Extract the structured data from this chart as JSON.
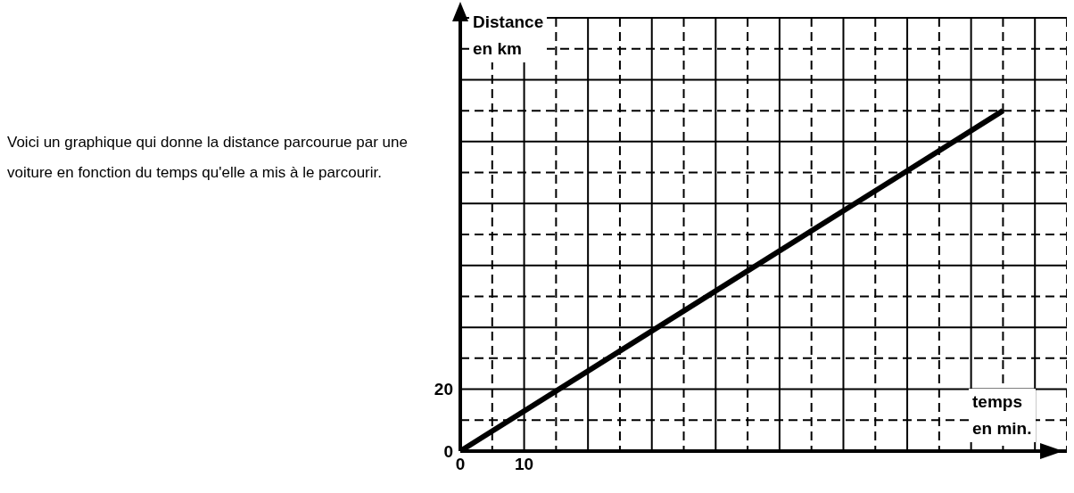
{
  "chart_data": {
    "type": "line",
    "xlabel": "temps en min.",
    "ylabel": "Distance en km",
    "annotations": [
      "Voici un graphique qui donne la distance parcourue par une voiture en fonction du temps qu'elle a mis à le parcourir."
    ],
    "xlim": [
      0,
      95
    ],
    "ylim": [
      0,
      140
    ],
    "xticks": [
      0,
      {
        "value": 5,
        "label": null
      },
      10,
      {
        "value": 15,
        "label": null
      },
      {
        "value": 20,
        "label": null
      },
      {
        "value": 25,
        "label": null
      },
      {
        "value": 30,
        "label": null
      },
      {
        "value": 35,
        "label": null
      },
      {
        "value": 40,
        "label": null
      },
      {
        "value": 45,
        "label": null
      },
      {
        "value": 50,
        "label": null
      },
      {
        "value": 55,
        "label": null
      },
      {
        "value": 60,
        "label": null
      },
      {
        "value": 65,
        "label": null
      },
      {
        "value": 70,
        "label": null
      },
      {
        "value": 75,
        "label": null
      },
      {
        "value": 80,
        "label": null
      },
      {
        "value": 85,
        "label": null
      },
      {
        "value": 90,
        "label": null
      }
    ],
    "yticks": [
      0,
      {
        "value": 10,
        "label": null
      },
      20,
      {
        "value": 30,
        "label": null
      },
      {
        "value": 40,
        "label": null
      },
      {
        "value": 50,
        "label": null
      },
      {
        "value": 60,
        "label": null
      },
      {
        "value": 70,
        "label": null
      },
      {
        "value": 80,
        "label": null
      },
      {
        "value": 90,
        "label": null
      },
      {
        "value": 100,
        "label": null
      },
      {
        "value": 110,
        "label": null
      },
      {
        "value": 120,
        "label": null
      },
      {
        "value": 130,
        "label": null
      }
    ],
    "grid": true,
    "marker": "none",
    "line_style": "solid",
    "series": [
      {
        "x": [
          0,
          85
        ],
        "values": [
          0,
          110
        ],
        "color": "#000000"
      }
    ]
  }
}
